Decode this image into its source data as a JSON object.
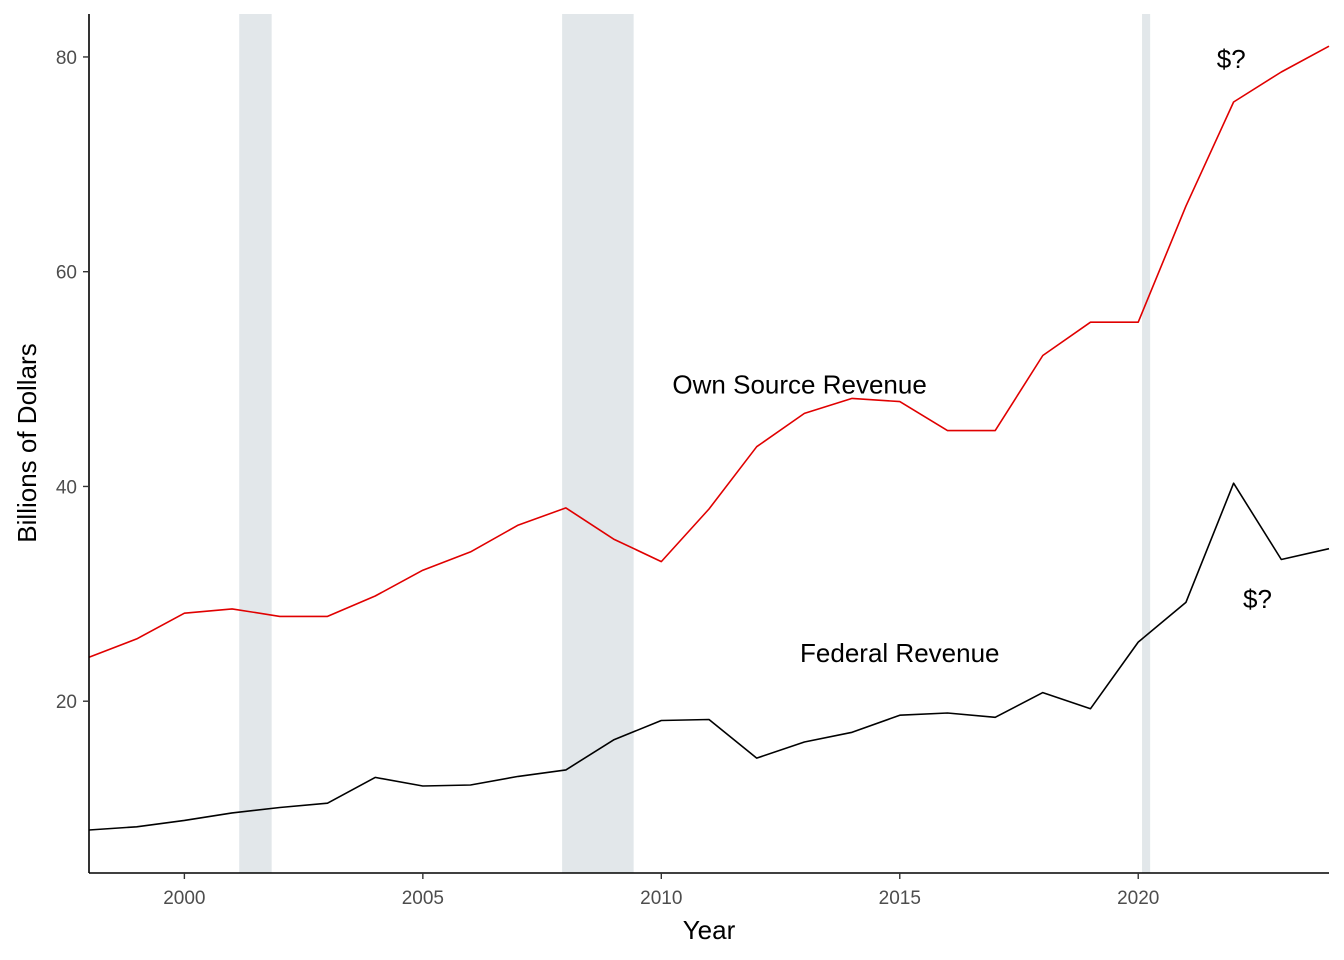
{
  "chart_data": {
    "type": "line",
    "title": "",
    "xlabel": "Year",
    "ylabel": "Billions of Dollars",
    "xlim": [
      1998,
      2024
    ],
    "ylim": [
      4,
      84
    ],
    "x_ticks": [
      2000,
      2005,
      2010,
      2015,
      2020
    ],
    "y_ticks": [
      20,
      40,
      60,
      80
    ],
    "grid": false,
    "legend": "none",
    "recession_bands": [
      {
        "start": 2001.15,
        "end": 2001.83
      },
      {
        "start": 2007.92,
        "end": 2009.42
      },
      {
        "start": 2020.08,
        "end": 2020.25
      }
    ],
    "series": [
      {
        "name": "Own Source Revenue",
        "color": "#e00000",
        "x": [
          1998,
          1999,
          2000,
          2001,
          2002,
          2003,
          2004,
          2005,
          2006,
          2007,
          2008,
          2009,
          2010,
          2011,
          2012,
          2013,
          2014,
          2015,
          2016,
          2017,
          2018,
          2019,
          2020,
          2021,
          2022,
          2023,
          2024
        ],
        "y": [
          24.1,
          25.8,
          28.2,
          28.6,
          27.9,
          27.9,
          29.8,
          32.2,
          33.9,
          36.4,
          38.0,
          35.1,
          33.0,
          37.9,
          43.7,
          46.8,
          48.2,
          47.9,
          45.2,
          45.2,
          52.2,
          55.3,
          55.3,
          66.1,
          75.8,
          78.6,
          81.0
        ]
      },
      {
        "name": "Federal Revenue",
        "color": "#000000",
        "x": [
          1998,
          1999,
          2000,
          2001,
          2002,
          2003,
          2004,
          2005,
          2006,
          2007,
          2008,
          2009,
          2010,
          2011,
          2012,
          2013,
          2014,
          2015,
          2016,
          2017,
          2018,
          2019,
          2020,
          2021,
          2022,
          2023,
          2024
        ],
        "y": [
          8.0,
          8.3,
          8.9,
          9.6,
          10.1,
          10.5,
          12.9,
          12.1,
          12.2,
          13.0,
          13.6,
          16.4,
          18.2,
          18.3,
          14.7,
          16.2,
          17.1,
          18.7,
          18.9,
          18.5,
          20.8,
          19.3,
          25.5,
          29.2,
          40.3,
          33.2,
          34.2
        ]
      }
    ],
    "annotations": [
      {
        "text": "Own Source Revenue",
        "x": 2012.9,
        "y": 49.5
      },
      {
        "text": "Federal Revenue",
        "x": 2015.0,
        "y": 24.5
      },
      {
        "text": "$?",
        "x": 2021.95,
        "y": 79.8
      },
      {
        "text": "$?",
        "x": 2022.5,
        "y": 29.5
      }
    ]
  }
}
